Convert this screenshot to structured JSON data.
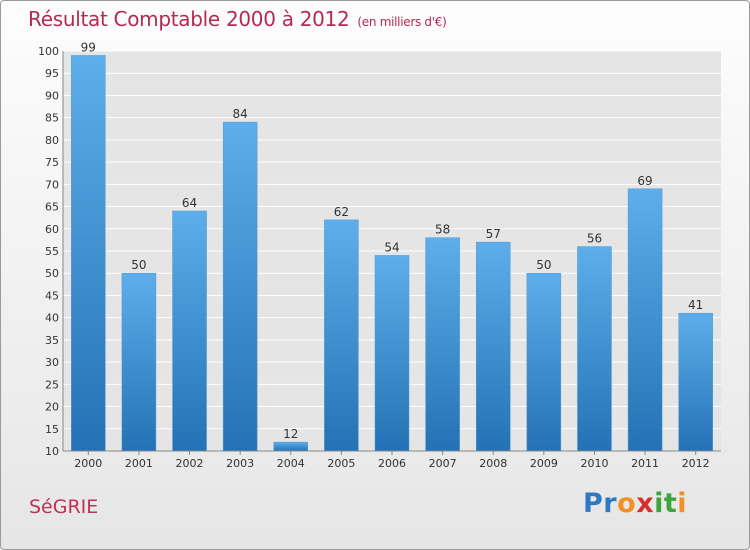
{
  "title": "Résultat Comptable 2000 à 2012",
  "unit": "(en milliers d'€)",
  "commune": "SéGRIE",
  "logo": {
    "letters": [
      {
        "ch": "P",
        "color": "#2e79c2"
      },
      {
        "ch": "r",
        "color": "#2e79c2"
      },
      {
        "ch": "o",
        "color": "#f19024"
      },
      {
        "ch": "x",
        "color": "#d7302a"
      },
      {
        "ch": "i",
        "color": "#3aa63a"
      },
      {
        "ch": "t",
        "color": "#3aa63a"
      },
      {
        "ch": "i",
        "color": "#f19024"
      }
    ]
  },
  "colors": {
    "bar_top": "#5daeea",
    "bar_bottom": "#2472b5",
    "grid": "#ffffff",
    "axis_text": "#333333"
  },
  "chart_data": {
    "type": "bar",
    "categories": [
      "2000",
      "2001",
      "2002",
      "2003",
      "2004",
      "2005",
      "2006",
      "2007",
      "2008",
      "2009",
      "2010",
      "2011",
      "2012"
    ],
    "values": [
      99,
      50,
      64,
      84,
      12,
      62,
      54,
      58,
      57,
      50,
      56,
      69,
      41
    ],
    "data_labels": [
      "99",
      "50",
      "64",
      "84",
      "12",
      "62",
      "54",
      "58",
      "57",
      "50",
      "56",
      "69",
      "41"
    ],
    "ylim": [
      10,
      100
    ],
    "yticks": [
      "10",
      "15",
      "20",
      "25",
      "30",
      "35",
      "40",
      "45",
      "50",
      "55",
      "60",
      "65",
      "70",
      "75",
      "80",
      "85",
      "90",
      "95",
      "100"
    ],
    "grid": true
  }
}
